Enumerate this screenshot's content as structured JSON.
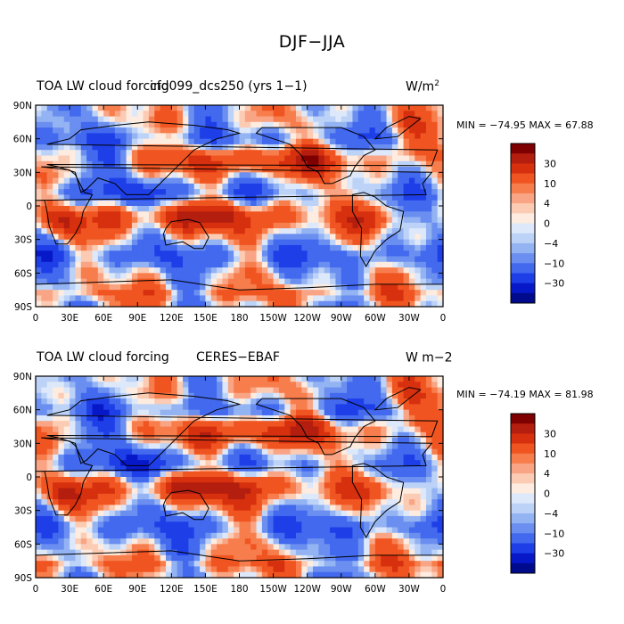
{
  "figure_title": "DJF−JJA",
  "panels": [
    {
      "left_title": "TOA LW cloud forcing",
      "center_title": "cfd099_dcs250 (yrs 1−1)",
      "units_base": "W/m",
      "units_sup": "2",
      "min_max": "MIN = −74.95  MAX =  67.88"
    },
    {
      "left_title": "TOA LW cloud forcing",
      "center_title": "CERES−EBAF",
      "units_base": "W m−2",
      "units_sup": "",
      "min_max": "MIN = −74.19  MAX =  81.98"
    }
  ],
  "lat_labels": [
    "90N",
    "60N",
    "30N",
    "0",
    "30S",
    "60S",
    "90S"
  ],
  "lon_labels": [
    "0",
    "30E",
    "60E",
    "90E",
    "120E",
    "150E",
    "180",
    "150W",
    "120W",
    "90W",
    "60W",
    "30W",
    "0"
  ],
  "colorbar": {
    "labels": [
      "30",
      "10",
      "4",
      "0",
      "−4",
      "−10",
      "−30"
    ],
    "colors": [
      "#7f0000",
      "#b41e0e",
      "#d7300f",
      "#f05521",
      "#f77e4c",
      "#f9a585",
      "#fbcbb3",
      "#fdecdf",
      "#dde8fa",
      "#bcd2f7",
      "#93b3f2",
      "#6b8ff0",
      "#4269ee",
      "#1e3fe8",
      "#0718c8",
      "#000a8c"
    ]
  }
}
